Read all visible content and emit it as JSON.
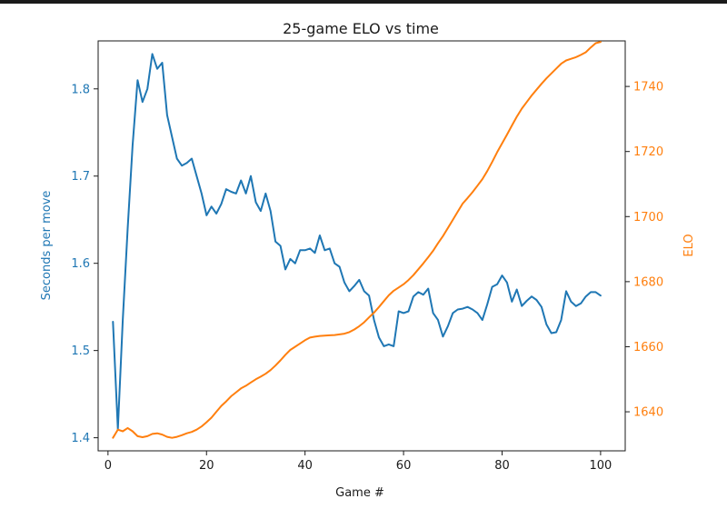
{
  "chart_data": {
    "type": "line",
    "title": "25-game ELO vs time",
    "xlabel": "Game #",
    "ylabel_left": "Seconds per move",
    "ylabel_right": "ELO",
    "xlim": [
      -2,
      105
    ],
    "ylim_left": [
      1.385,
      1.855
    ],
    "ylim_right": [
      1628,
      1754
    ],
    "x_ticks": [
      0,
      20,
      40,
      60,
      80,
      100
    ],
    "y_ticks_left": [
      1.4,
      1.5,
      1.6,
      1.7,
      1.8
    ],
    "y_ticks_right": [
      1640,
      1660,
      1680,
      1700,
      1720,
      1740
    ],
    "grid": false,
    "colors": {
      "left": "#1f77b4",
      "right": "#ff7f0e",
      "axis": "#1a1a1a"
    },
    "series": [
      {
        "axis": "left",
        "color": "#1f77b4",
        "x": [
          1,
          2,
          3,
          4,
          5,
          6,
          7,
          8,
          9,
          10,
          11,
          12,
          13,
          14,
          15,
          16,
          17,
          18,
          19,
          20,
          21,
          22,
          23,
          24,
          25,
          26,
          27,
          28,
          29,
          30,
          31,
          32,
          33,
          34,
          35,
          36,
          37,
          38,
          39,
          40,
          41,
          42,
          43,
          44,
          45,
          46,
          47,
          48,
          49,
          50,
          51,
          52,
          53,
          54,
          55,
          56,
          57,
          58,
          59,
          60,
          61,
          62,
          63,
          64,
          65,
          66,
          67,
          68,
          69,
          70,
          71,
          72,
          73,
          74,
          75,
          76,
          77,
          78,
          79,
          80,
          81,
          82,
          83,
          84,
          85,
          86,
          87,
          88,
          89,
          90,
          91,
          92,
          93,
          94,
          95,
          96,
          97,
          98,
          99,
          100
        ],
        "values": [
          1.533,
          1.41,
          1.535,
          1.64,
          1.735,
          1.81,
          1.785,
          1.8,
          1.84,
          1.823,
          1.83,
          1.77,
          1.745,
          1.72,
          1.712,
          1.715,
          1.72,
          1.7,
          1.68,
          1.655,
          1.665,
          1.657,
          1.668,
          1.685,
          1.682,
          1.68,
          1.695,
          1.68,
          1.7,
          1.67,
          1.66,
          1.68,
          1.66,
          1.625,
          1.62,
          1.593,
          1.605,
          1.6,
          1.615,
          1.615,
          1.617,
          1.612,
          1.632,
          1.615,
          1.617,
          1.6,
          1.596,
          1.578,
          1.568,
          1.574,
          1.581,
          1.568,
          1.563,
          1.535,
          1.515,
          1.505,
          1.507,
          1.505,
          1.545,
          1.543,
          1.545,
          1.562,
          1.567,
          1.564,
          1.571,
          1.543,
          1.535,
          1.516,
          1.528,
          1.543,
          1.547,
          1.548,
          1.55,
          1.547,
          1.543,
          1.535,
          1.553,
          1.573,
          1.576,
          1.586,
          1.578,
          1.556,
          1.57,
          1.551,
          1.557,
          1.562,
          1.558,
          1.55,
          1.53,
          1.52,
          1.521,
          1.535,
          1.568,
          1.556,
          1.551,
          1.554,
          1.562,
          1.567,
          1.567,
          1.563
        ]
      },
      {
        "axis": "right",
        "color": "#ff7f0e",
        "x": [
          1,
          2,
          3,
          4,
          5,
          6,
          7,
          8,
          9,
          10,
          11,
          12,
          13,
          14,
          15,
          16,
          17,
          18,
          19,
          20,
          21,
          22,
          23,
          24,
          25,
          26,
          27,
          28,
          29,
          30,
          31,
          32,
          33,
          34,
          35,
          36,
          37,
          38,
          39,
          40,
          41,
          42,
          43,
          44,
          45,
          46,
          47,
          48,
          49,
          50,
          51,
          52,
          53,
          54,
          55,
          56,
          57,
          58,
          59,
          60,
          61,
          62,
          63,
          64,
          65,
          66,
          67,
          68,
          69,
          70,
          71,
          72,
          73,
          74,
          75,
          76,
          77,
          78,
          79,
          80,
          81,
          82,
          83,
          84,
          85,
          86,
          87,
          88,
          89,
          90,
          91,
          92,
          93,
          94,
          95,
          96,
          97,
          98,
          99,
          100
        ],
        "values": [
          1632,
          1634.5,
          1634,
          1635,
          1634,
          1632.5,
          1632.2,
          1632.5,
          1633.2,
          1633.4,
          1633,
          1632.3,
          1632,
          1632.3,
          1632.8,
          1633.4,
          1633.8,
          1634.5,
          1635.5,
          1636.8,
          1638.2,
          1640,
          1641.8,
          1643.2,
          1644.8,
          1646,
          1647.2,
          1648,
          1649,
          1650,
          1650.8,
          1651.7,
          1652.8,
          1654.2,
          1655.8,
          1657.5,
          1659,
          1660,
          1661,
          1662,
          1662.8,
          1663.1,
          1663.3,
          1663.4,
          1663.5,
          1663.6,
          1663.8,
          1664,
          1664.5,
          1665.3,
          1666.3,
          1667.5,
          1669,
          1670.5,
          1672.2,
          1674,
          1675.8,
          1677.2,
          1678.2,
          1679.2,
          1680.5,
          1682,
          1683.8,
          1685.6,
          1687.5,
          1689.5,
          1691.8,
          1694,
          1696.5,
          1699,
          1701.5,
          1704,
          1705.7,
          1707.5,
          1709.5,
          1711.5,
          1714,
          1716.8,
          1719.8,
          1722.5,
          1725.2,
          1728,
          1730.7,
          1733.2,
          1735.2,
          1737.2,
          1739,
          1740.8,
          1742.5,
          1744,
          1745.5,
          1747,
          1748,
          1748.5,
          1749,
          1749.7,
          1750.5,
          1752,
          1753.3,
          1753.7
        ]
      }
    ]
  }
}
